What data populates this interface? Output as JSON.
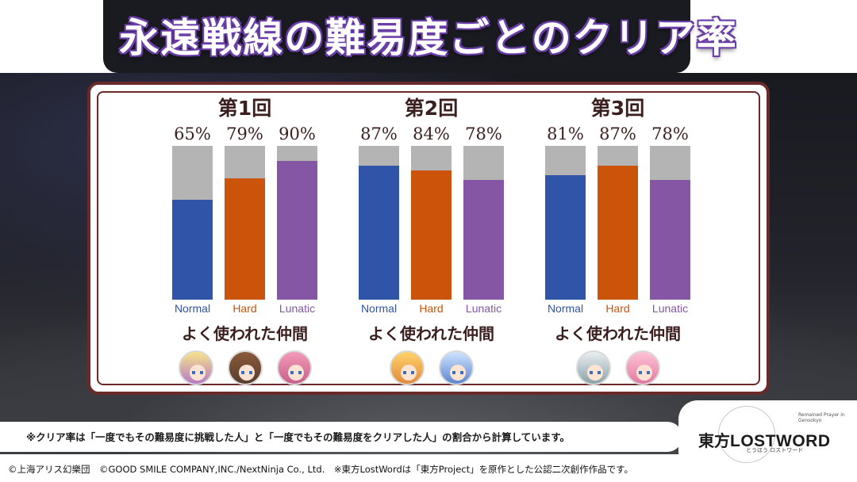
{
  "title": "永遠戦線の難易度ごとのクリア率",
  "chart_data": [
    {
      "type": "bar",
      "title": "第1回",
      "categories": [
        "Normal",
        "Hard",
        "Lunatic"
      ],
      "values": [
        65,
        79,
        90
      ],
      "value_labels": [
        "65%",
        "79%",
        "90%"
      ],
      "ylim": [
        0,
        100
      ],
      "colors": [
        "#2f54a8",
        "#cc530a",
        "#8456a4"
      ],
      "allies_label": "よく使われた仲間",
      "allies_icons": [
        "yukari-icon",
        "sumireko-icon",
        "kokoro-icon"
      ]
    },
    {
      "type": "bar",
      "title": "第2回",
      "categories": [
        "Normal",
        "Hard",
        "Lunatic"
      ],
      "values": [
        87,
        84,
        78
      ],
      "value_labels": [
        "87%",
        "84%",
        "78%"
      ],
      "ylim": [
        0,
        100
      ],
      "colors": [
        "#2f54a8",
        "#cc530a",
        "#8456a4"
      ],
      "allies_label": "よく使われた仲間",
      "allies_icons": [
        "sunny-icon",
        "chimata-icon"
      ]
    },
    {
      "type": "bar",
      "title": "第3回",
      "categories": [
        "Normal",
        "Hard",
        "Lunatic"
      ],
      "values": [
        81,
        87,
        78
      ],
      "value_labels": [
        "81%",
        "87%",
        "78%"
      ],
      "ylim": [
        0,
        100
      ],
      "colors": [
        "#2f54a8",
        "#cc530a",
        "#8456a4"
      ],
      "allies_label": "よく使われた仲間",
      "allies_icons": [
        "youmu-icon",
        "satori-icon"
      ]
    }
  ],
  "note": "※クリア率は「一度でもその難易度に挑戦した人」と「一度でもその難易度をクリアした人」の割合から計算しています。",
  "copyright": "©上海アリス幻樂団　©GOOD SMILE COMPANY,INC./NextNinja Co., Ltd.　※東方LostWordは「東方Project」を原作とした公認二次創作作品です。",
  "logo": {
    "kanji": "東方",
    "text": "LOSTWORD",
    "reading": "とうほう ロストワード",
    "tagline": "Remained Prayer in Gensokyo"
  },
  "colors": {
    "track": "#b4b4b4",
    "frame": "#6b2a2a",
    "title_outline": "#6b3fa8"
  }
}
